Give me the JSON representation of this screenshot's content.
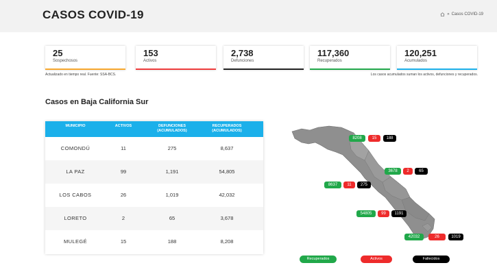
{
  "header": {
    "title": "CASOS COVID-19",
    "breadcrumb_separator": "»",
    "breadcrumb_current": "Casos COVID-19"
  },
  "stats": [
    {
      "value": "25",
      "label": "Sospechosos",
      "color": "#f7a72d"
    },
    {
      "value": "153",
      "label": "Activos",
      "color": "#ee3b3b"
    },
    {
      "value": "2,738",
      "label": "Defunciones",
      "color": "#222222"
    },
    {
      "value": "117,360",
      "label": "Recuperados",
      "color": "#21a84a"
    },
    {
      "value": "120,251",
      "label": "Acumulados",
      "color": "#1bb0ea"
    }
  ],
  "notes": {
    "left": "Actualizado en tiempo real. Fuente: SSA-BCS.",
    "right": "Los casos acumulados suman los activos, defunciones y recuperados."
  },
  "section_title": "Casos en Baja California Sur",
  "table": {
    "headers": {
      "municipio": "MUNICIPIO",
      "activos": "ACTIVOS",
      "defunciones_1": "DEFUNCIONES",
      "defunciones_2": "(ACUMULADOS)",
      "recuperados_1": "RECUPERADOS",
      "recuperados_2": "(ACUMULADOS)"
    },
    "rows": [
      {
        "municipio": "COMONDÚ",
        "activos": "11",
        "defunciones": "275",
        "recuperados": "8,637"
      },
      {
        "municipio": "LA PAZ",
        "activos": "99",
        "defunciones": "1,191",
        "recuperados": "54,805"
      },
      {
        "municipio": "LOS CABOS",
        "activos": "26",
        "defunciones": "1,019",
        "recuperados": "42,032"
      },
      {
        "municipio": "LORETO",
        "activos": "2",
        "defunciones": "65",
        "recuperados": "3,678"
      },
      {
        "municipio": "MULEGÉ",
        "activos": "15",
        "defunciones": "188",
        "recuperados": "8,208"
      }
    ]
  },
  "map_labels": {
    "mulege": {
      "recuperados": "8208",
      "activos": "15",
      "defunciones": "188"
    },
    "loreto": {
      "recuperados": "3678",
      "activos": "2",
      "defunciones": "65"
    },
    "comondu": {
      "recuperados": "8637",
      "activos": "11",
      "defunciones": "275"
    },
    "lapaz": {
      "recuperados": "54805",
      "activos": "99",
      "defunciones": "1191"
    },
    "loscabos": {
      "recuperados": "42032",
      "activos": "26",
      "defunciones": "1019"
    }
  },
  "legend": {
    "recuperados": "Recuperados",
    "activos": "Activos",
    "fallecidos": "Fallecidos"
  }
}
